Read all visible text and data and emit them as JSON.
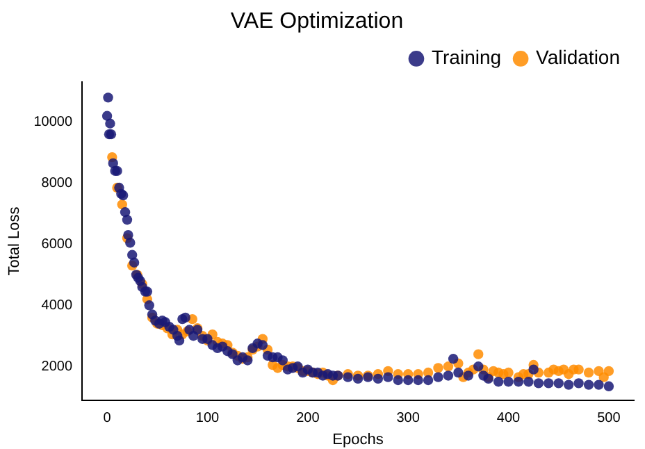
{
  "chart_data": {
    "type": "scatter",
    "title": "VAE Optimization",
    "xlabel": "Epochs",
    "ylabel": "Total Loss",
    "xlim": [
      -25,
      525
    ],
    "ylim": [
      900,
      11300
    ],
    "xticks": [
      0,
      100,
      200,
      300,
      400,
      500
    ],
    "yticks": [
      2000,
      4000,
      6000,
      8000,
      10000
    ],
    "grid": false,
    "legend": "top right",
    "marker": "circle",
    "series": [
      {
        "name": "Training",
        "color": "#191975",
        "x": [
          0,
          1,
          2,
          3,
          4,
          6,
          8,
          10,
          12,
          14,
          16,
          18,
          20,
          21,
          23,
          25,
          27,
          29,
          31,
          33,
          35,
          38,
          40,
          42,
          45,
          48,
          52,
          55,
          58,
          62,
          66,
          70,
          72,
          75,
          78,
          82,
          86,
          90,
          95,
          100,
          105,
          110,
          115,
          120,
          125,
          130,
          135,
          140,
          145,
          150,
          155,
          160,
          165,
          170,
          175,
          180,
          185,
          190,
          195,
          200,
          205,
          210,
          215,
          220,
          225,
          230,
          240,
          250,
          260,
          270,
          280,
          290,
          300,
          310,
          320,
          330,
          340,
          345,
          350,
          360,
          370,
          375,
          380,
          390,
          400,
          410,
          420,
          425,
          430,
          440,
          450,
          460,
          470,
          480,
          490,
          500
        ],
        "values": [
          10200,
          10800,
          9600,
          9950,
          9600,
          8650,
          8400,
          8400,
          7850,
          7650,
          7600,
          7050,
          6800,
          6300,
          6050,
          5650,
          5400,
          5000,
          4900,
          4800,
          4600,
          4450,
          4450,
          4000,
          3700,
          3500,
          3400,
          3500,
          3450,
          3300,
          3200,
          3000,
          2850,
          3550,
          3600,
          3200,
          3000,
          3200,
          2900,
          2900,
          2700,
          2600,
          2650,
          2500,
          2400,
          2200,
          2300,
          2200,
          2600,
          2750,
          2700,
          2350,
          2300,
          2300,
          2200,
          1900,
          1950,
          2000,
          1800,
          1900,
          1800,
          1800,
          1700,
          1750,
          1700,
          1700,
          1650,
          1600,
          1650,
          1600,
          1650,
          1550,
          1550,
          1550,
          1550,
          1650,
          1700,
          2250,
          1800,
          1700,
          2000,
          1700,
          1600,
          1500,
          1500,
          1500,
          1500,
          1900,
          1450,
          1450,
          1450,
          1400,
          1450,
          1400,
          1400,
          1350
        ]
      },
      {
        "name": "Validation",
        "color": "#ff8c00",
        "x": [
          5,
          10,
          15,
          20,
          25,
          30,
          35,
          40,
          45,
          50,
          55,
          60,
          65,
          70,
          75,
          80,
          85,
          90,
          95,
          100,
          105,
          110,
          115,
          120,
          125,
          130,
          135,
          140,
          145,
          150,
          155,
          160,
          165,
          170,
          175,
          180,
          185,
          190,
          195,
          200,
          205,
          210,
          215,
          220,
          225,
          230,
          240,
          250,
          260,
          270,
          280,
          290,
          300,
          310,
          320,
          330,
          340,
          350,
          355,
          360,
          365,
          370,
          375,
          380,
          385,
          390,
          395,
          400,
          410,
          415,
          420,
          425,
          430,
          440,
          445,
          450,
          455,
          460,
          465,
          470,
          480,
          490,
          495,
          500
        ],
        "values": [
          8850,
          7850,
          7300,
          6200,
          5300,
          5000,
          4700,
          4200,
          3600,
          3400,
          3350,
          3250,
          3050,
          3200,
          3050,
          3150,
          3550,
          3250,
          3000,
          2850,
          3050,
          2800,
          2750,
          2700,
          2450,
          2350,
          2250,
          2300,
          2550,
          2650,
          2900,
          2550,
          2050,
          1950,
          2050,
          2000,
          2000,
          1950,
          1850,
          1850,
          1800,
          1750,
          1800,
          1700,
          1550,
          1700,
          1750,
          1700,
          1700,
          1750,
          1850,
          1750,
          1750,
          1750,
          1800,
          1950,
          2000,
          2100,
          1650,
          1800,
          1900,
          2400,
          1900,
          1650,
          1850,
          1800,
          1750,
          1800,
          1650,
          1750,
          1750,
          2050,
          1800,
          1800,
          1900,
          1850,
          1900,
          1750,
          1900,
          1900,
          1800,
          1850,
          1650,
          1850
        ]
      }
    ]
  }
}
